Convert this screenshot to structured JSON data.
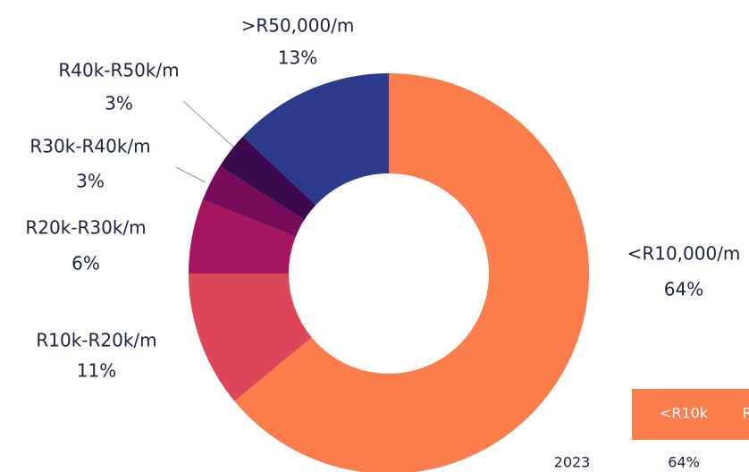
{
  "chart_data": {
    "type": "donut",
    "categories": [
      "<R10,000/m",
      "R10k-R20k/m",
      "R20k-R30k/m",
      "R30k-R40k/m",
      "R40k-R50k/m",
      ">R50,000/m"
    ],
    "values": [
      64,
      11,
      6,
      3,
      3,
      13
    ],
    "value_labels": [
      "64%",
      "11%",
      "6%",
      "3%",
      "3%",
      "13%"
    ],
    "colors": [
      "#fa7d4b",
      "#dc4659",
      "#a6175f",
      "#790b5c",
      "#3b0a4e",
      "#2b3a8b"
    ]
  },
  "table": {
    "header": [
      "<R10k",
      "R"
    ],
    "rows": [
      [
        "2023",
        "64%"
      ]
    ],
    "header_color": "#fa7d4b"
  }
}
